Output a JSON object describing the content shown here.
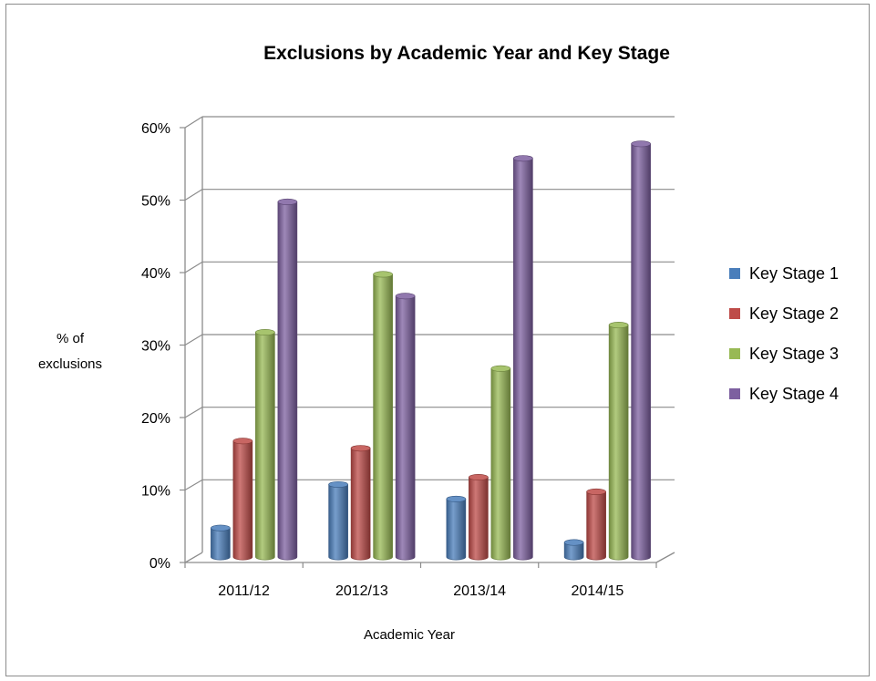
{
  "chart_data": {
    "type": "bar",
    "title": "Exclusions by Academic Year and Key Stage",
    "xlabel": "Academic Year",
    "ylabel": [
      "% of",
      "exclusions"
    ],
    "categories": [
      "2011/12",
      "2012/13",
      "2013/14",
      "2014/15"
    ],
    "y_ticks": [
      "0%",
      "10%",
      "20%",
      "30%",
      "40%",
      "50%",
      "60%"
    ],
    "ylim": [
      0,
      60
    ],
    "grid": true,
    "legend_position": "right",
    "series": [
      {
        "name": "Key Stage 1",
        "color": "#4a7ebb",
        "values": [
          4,
          10,
          8,
          2
        ]
      },
      {
        "name": "Key Stage 2",
        "color": "#be4b48",
        "values": [
          16,
          15,
          11,
          9
        ]
      },
      {
        "name": "Key Stage 3",
        "color": "#98b954",
        "values": [
          31,
          39,
          26,
          32
        ]
      },
      {
        "name": "Key Stage 4",
        "color": "#7d60a0",
        "values": [
          49,
          36,
          55,
          57
        ]
      }
    ]
  }
}
